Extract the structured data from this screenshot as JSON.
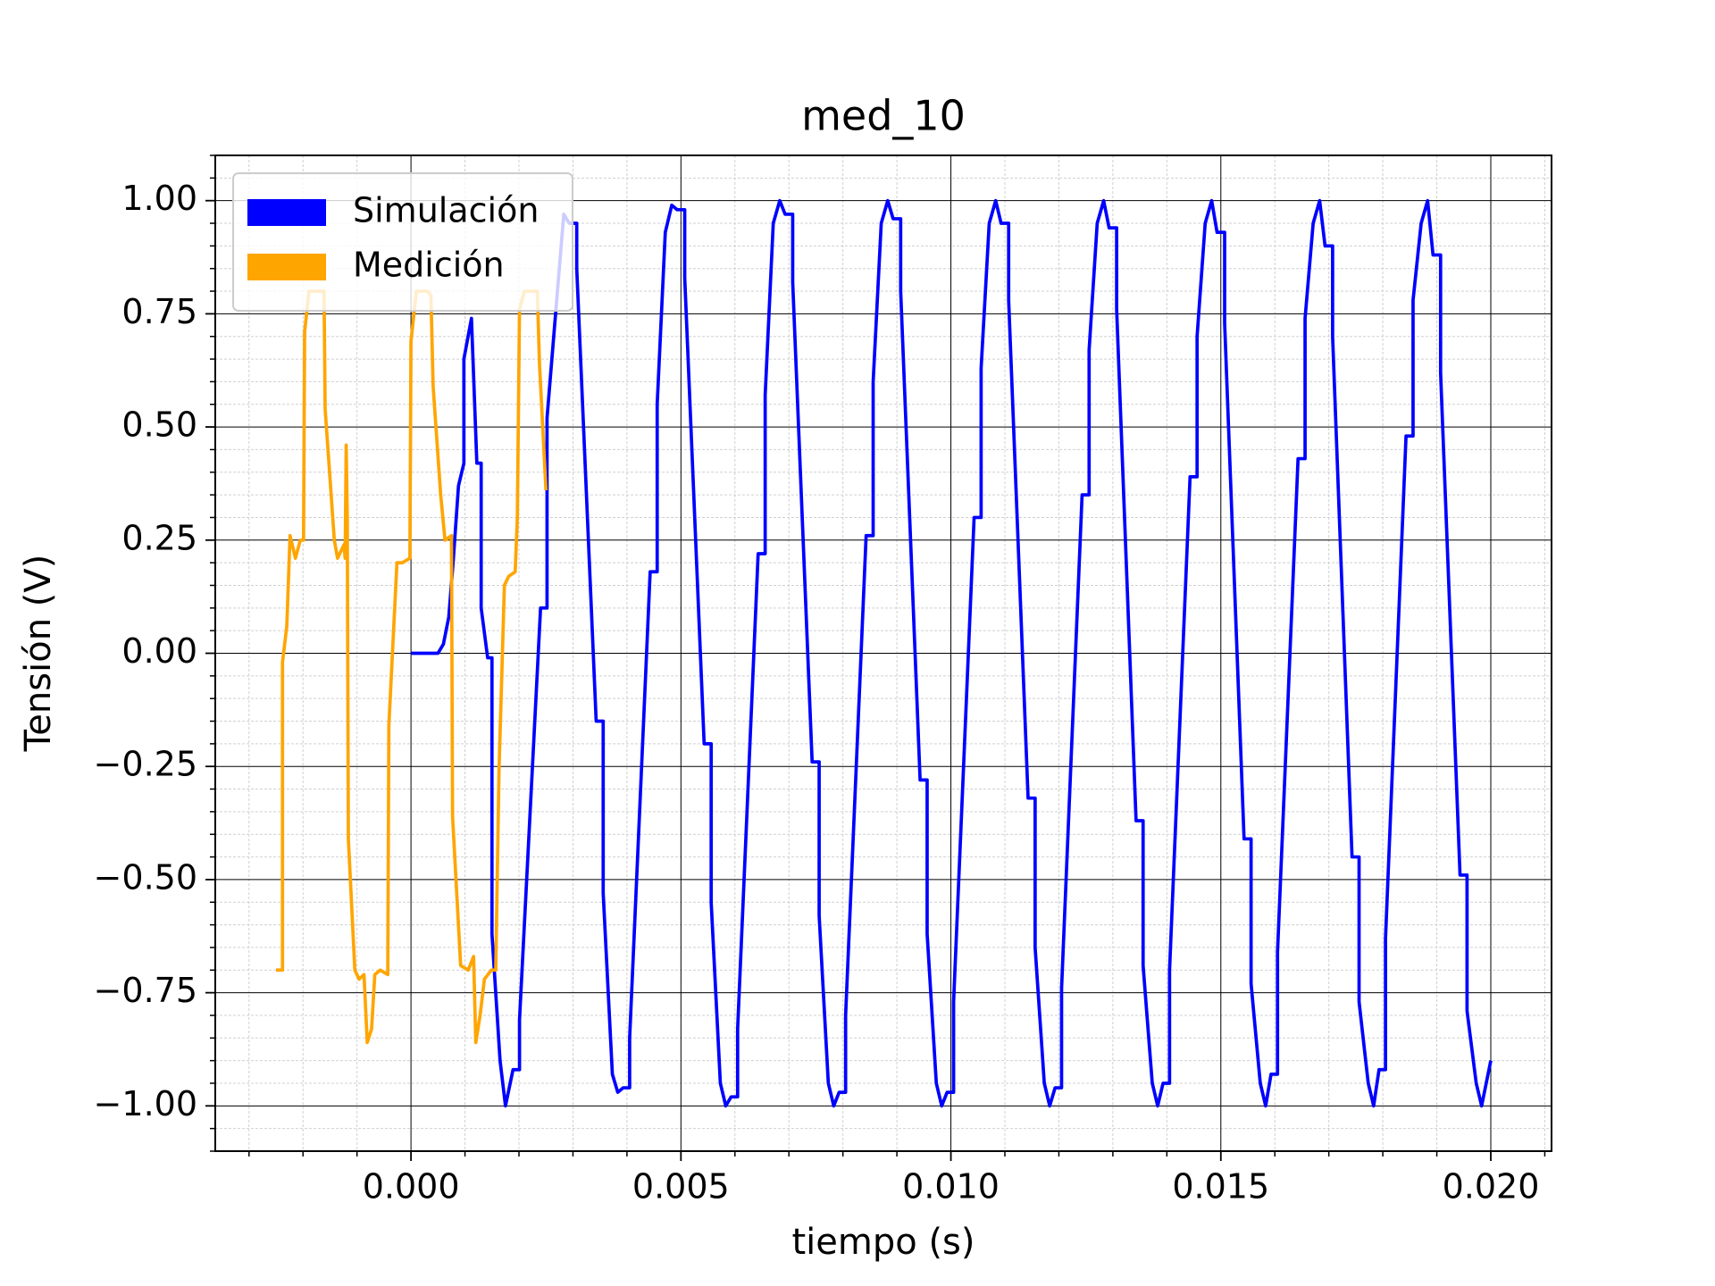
{
  "chart_data": {
    "type": "line",
    "title": "med_10",
    "x_label": "tiempo (s)",
    "y_label": "Tensión (V)",
    "xlim": [
      -0.003625,
      0.021125
    ],
    "ylim": [
      -1.1,
      1.1
    ],
    "xticks": [
      {
        "value": 0,
        "label": "0.000"
      },
      {
        "value": 0.005,
        "label": "0.005"
      },
      {
        "value": 0.01,
        "label": "0.010"
      },
      {
        "value": 0.015,
        "label": "0.015"
      },
      {
        "value": 0.02,
        "label": "0.020"
      }
    ],
    "yticks": [
      {
        "value": -1,
        "label": "−1.00"
      },
      {
        "value": -0.75,
        "label": "−0.75"
      },
      {
        "value": -0.5,
        "label": "−0.50"
      },
      {
        "value": -0.25,
        "label": "−0.25"
      },
      {
        "value": 0,
        "label": "0.00"
      },
      {
        "value": 0.25,
        "label": "0.25"
      },
      {
        "value": 0.5,
        "label": "0.50"
      },
      {
        "value": 0.75,
        "label": "0.75"
      },
      {
        "value": 1,
        "label": "1.00"
      }
    ],
    "xminorticks": [
      -0.003,
      -0.002,
      -0.001,
      0.001,
      0.002,
      0.003,
      0.004,
      0.006,
      0.007,
      0.008,
      0.009,
      0.011,
      0.012,
      0.013,
      0.014,
      0.016,
      0.017,
      0.018,
      0.019,
      0.021
    ],
    "yminorticks": [
      -1.1,
      -1.05,
      -0.95,
      -0.9,
      -0.85,
      -0.8,
      -0.7,
      -0.65,
      -0.6,
      -0.55,
      -0.45,
      -0.4,
      -0.35,
      -0.3,
      -0.2,
      -0.15,
      -0.1,
      -0.05,
      0.05,
      0.1,
      0.15,
      0.2,
      0.3,
      0.35,
      0.4,
      0.45,
      0.55,
      0.6,
      0.65,
      0.7,
      0.8,
      0.85,
      0.9,
      0.95,
      1.05,
      1.1
    ],
    "grid": true,
    "minor_grid": true,
    "legend": "upper left",
    "series": [
      {
        "name": "Simulación",
        "color": "#0000ff",
        "x": [
          0,
          0.0005,
          0.0006,
          0.0007,
          0.00078,
          0.00088,
          0.00098,
          0.00098,
          0.00112,
          0.00122,
          0.0013,
          0.0013,
          0.00142,
          0.0015,
          0.0015,
          0.00165,
          0.00175,
          0.00189,
          0.00201,
          0.00201,
          0.0024,
          0.00252,
          0.00252,
          0.00283,
          0.00293,
          0.00307,
          0.00307,
          0.00343,
          0.00356,
          0.00356,
          0.00373,
          0.00383,
          0.00393,
          0.00405,
          0.00405,
          0.00443,
          0.00456,
          0.00456,
          0.00471,
          0.00483,
          0.00493,
          0.00507,
          0.00507,
          0.00543,
          0.00556,
          0.00556,
          0.00573,
          0.00583,
          0.00593,
          0.00605,
          0.00605,
          0.00643,
          0.00656,
          0.00656,
          0.00671,
          0.00683,
          0.00693,
          0.00707,
          0.00707,
          0.00743,
          0.00756,
          0.00756,
          0.00773,
          0.00783,
          0.00793,
          0.00805,
          0.00805,
          0.00843,
          0.00856,
          0.00856,
          0.00871,
          0.00883,
          0.00893,
          0.00907,
          0.00907,
          0.00943,
          0.00956,
          0.00956,
          0.00973,
          0.00983,
          0.00993,
          0.01005,
          0.01005,
          0.01043,
          0.01056,
          0.01056,
          0.01071,
          0.01083,
          0.01093,
          0.01107,
          0.01107,
          0.01143,
          0.01156,
          0.01156,
          0.01173,
          0.01183,
          0.01193,
          0.01205,
          0.01205,
          0.01243,
          0.01256,
          0.01256,
          0.01271,
          0.01283,
          0.01293,
          0.01307,
          0.01307,
          0.01343,
          0.01356,
          0.01356,
          0.01373,
          0.01383,
          0.01393,
          0.01405,
          0.01405,
          0.01443,
          0.01456,
          0.01456,
          0.01471,
          0.01483,
          0.01493,
          0.01507,
          0.01507,
          0.01543,
          0.01556,
          0.01556,
          0.01573,
          0.01583,
          0.01593,
          0.01605,
          0.01605,
          0.01643,
          0.01656,
          0.01656,
          0.01671,
          0.01683,
          0.01693,
          0.01707,
          0.01707,
          0.01743,
          0.01756,
          0.01756,
          0.01773,
          0.01783,
          0.01793,
          0.01805,
          0.01805,
          0.01843,
          0.01856,
          0.01856,
          0.01871,
          0.01883,
          0.01893,
          0.01907,
          0.01907,
          0.01943,
          0.01956,
          0.01956,
          0.01973,
          0.01983,
          0.02
        ],
        "values": [
          0,
          0,
          0.02,
          0.08,
          0.2,
          0.37,
          0.42,
          0.65,
          0.74,
          0.42,
          0.42,
          0.1,
          -0.01,
          -0.01,
          -0.62,
          -0.9,
          -1.0,
          -0.92,
          -0.92,
          -0.81,
          0.1,
          0.1,
          0.52,
          0.97,
          0.95,
          0.95,
          0.85,
          -0.15,
          -0.15,
          -0.53,
          -0.93,
          -0.97,
          -0.96,
          -0.96,
          -0.85,
          0.18,
          0.18,
          0.55,
          0.93,
          0.99,
          0.98,
          0.98,
          0.83,
          -0.2,
          -0.2,
          -0.55,
          -0.95,
          -1.0,
          -0.98,
          -0.98,
          -0.83,
          0.22,
          0.22,
          0.57,
          0.95,
          1.0,
          0.97,
          0.97,
          0.82,
          -0.24,
          -0.24,
          -0.58,
          -0.95,
          -1.0,
          -0.97,
          -0.97,
          -0.8,
          0.26,
          0.26,
          0.6,
          0.95,
          1.0,
          0.96,
          0.96,
          0.8,
          -0.28,
          -0.28,
          -0.62,
          -0.95,
          -1.0,
          -0.97,
          -0.97,
          -0.77,
          0.3,
          0.3,
          0.63,
          0.95,
          1.0,
          0.95,
          0.95,
          0.78,
          -0.32,
          -0.32,
          -0.65,
          -0.95,
          -1.0,
          -0.96,
          -0.96,
          -0.74,
          0.35,
          0.35,
          0.67,
          0.95,
          1.0,
          0.94,
          0.94,
          0.76,
          -0.37,
          -0.37,
          -0.69,
          -0.95,
          -1.0,
          -0.95,
          -0.95,
          -0.7,
          0.39,
          0.39,
          0.7,
          0.95,
          1.0,
          0.93,
          0.93,
          0.73,
          -0.41,
          -0.41,
          -0.73,
          -0.95,
          -1.0,
          -0.93,
          -0.93,
          -0.66,
          0.43,
          0.43,
          0.74,
          0.95,
          1.0,
          0.9,
          0.9,
          0.7,
          -0.45,
          -0.45,
          -0.77,
          -0.95,
          -1.0,
          -0.92,
          -0.92,
          -0.63,
          0.48,
          0.48,
          0.78,
          0.95,
          1.0,
          0.88,
          0.88,
          0.62,
          -0.49,
          -0.49,
          -0.79,
          -0.95,
          -1.0,
          -0.9
        ]
      },
      {
        "name": "Medición",
        "color": "#ffa500",
        "x": [
          -0.0025,
          -0.00238,
          -0.00238,
          -0.0023,
          -0.00224,
          -0.00214,
          -0.00205,
          -0.00199,
          -0.00197,
          -0.00189,
          -0.00161,
          -0.00159,
          -0.00142,
          -0.00136,
          -0.00124,
          -0.00122,
          -0.0012,
          -0.00118,
          -0.00116,
          -0.00104,
          -0.00096,
          -0.00087,
          -0.00081,
          -0.00073,
          -0.00067,
          -0.00057,
          -0.00043,
          -0.00041,
          -0.00026,
          -0.00016,
          -2e-05,
          0,
          0.0001,
          0.00031,
          0.00037,
          0.00041,
          0.00055,
          0.00063,
          0.00075,
          0.00077,
          0.00092,
          0.00106,
          0.00116,
          0.0012,
          0.00128,
          0.00136,
          0.00149,
          0.00157,
          0.00163,
          0.00173,
          0.00181,
          0.00193,
          0.00197,
          0.00201,
          0.0021,
          0.00234,
          0.00238,
          0.0025
        ],
        "values": [
          -0.7,
          -0.7,
          -0.02,
          0.06,
          0.26,
          0.21,
          0.25,
          0.25,
          0.71,
          0.8,
          0.8,
          0.54,
          0.25,
          0.21,
          0.24,
          0.21,
          0.46,
          0.3,
          -0.41,
          -0.7,
          -0.72,
          -0.71,
          -0.86,
          -0.83,
          -0.71,
          -0.7,
          -0.71,
          -0.16,
          0.2,
          0.2,
          0.21,
          0.69,
          0.8,
          0.8,
          0.79,
          0.59,
          0.35,
          0.25,
          0.26,
          -0.36,
          -0.69,
          -0.7,
          -0.67,
          -0.86,
          -0.8,
          -0.72,
          -0.7,
          -0.7,
          -0.26,
          0.15,
          0.17,
          0.18,
          0.3,
          0.76,
          0.8,
          0.8,
          0.64,
          0.36
        ]
      }
    ]
  }
}
